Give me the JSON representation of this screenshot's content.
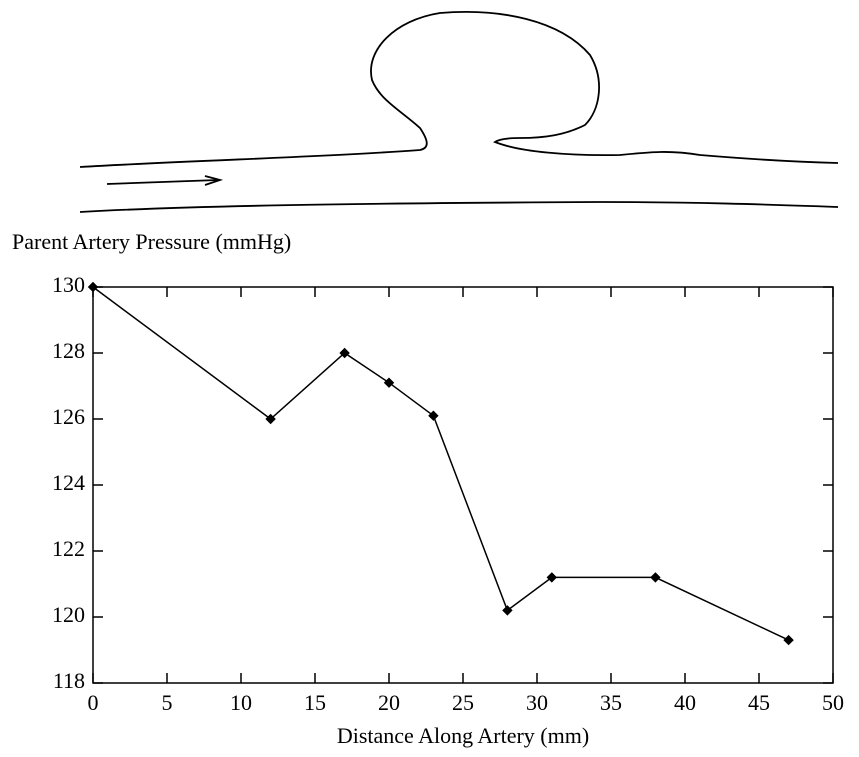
{
  "chart_data": {
    "type": "line",
    "title": "Parent Artery Pressure (mmHg)",
    "x_label": "Distance Along Artery (mm)",
    "x": [
      0,
      12,
      17,
      20,
      23,
      28,
      31,
      38,
      47
    ],
    "series": [
      {
        "color": "#000000",
        "values": [
          130,
          126,
          128,
          127.1,
          126.1,
          120.2,
          121.2,
          121.2,
          119.3
        ]
      }
    ],
    "xlim": [
      0,
      50
    ],
    "xticks": [
      0,
      5,
      10,
      15,
      20,
      25,
      30,
      35,
      40,
      45,
      50
    ],
    "ylim": [
      118,
      130
    ],
    "yticks": [
      118,
      120,
      122,
      124,
      126,
      128,
      130
    ],
    "grid": false
  }
}
